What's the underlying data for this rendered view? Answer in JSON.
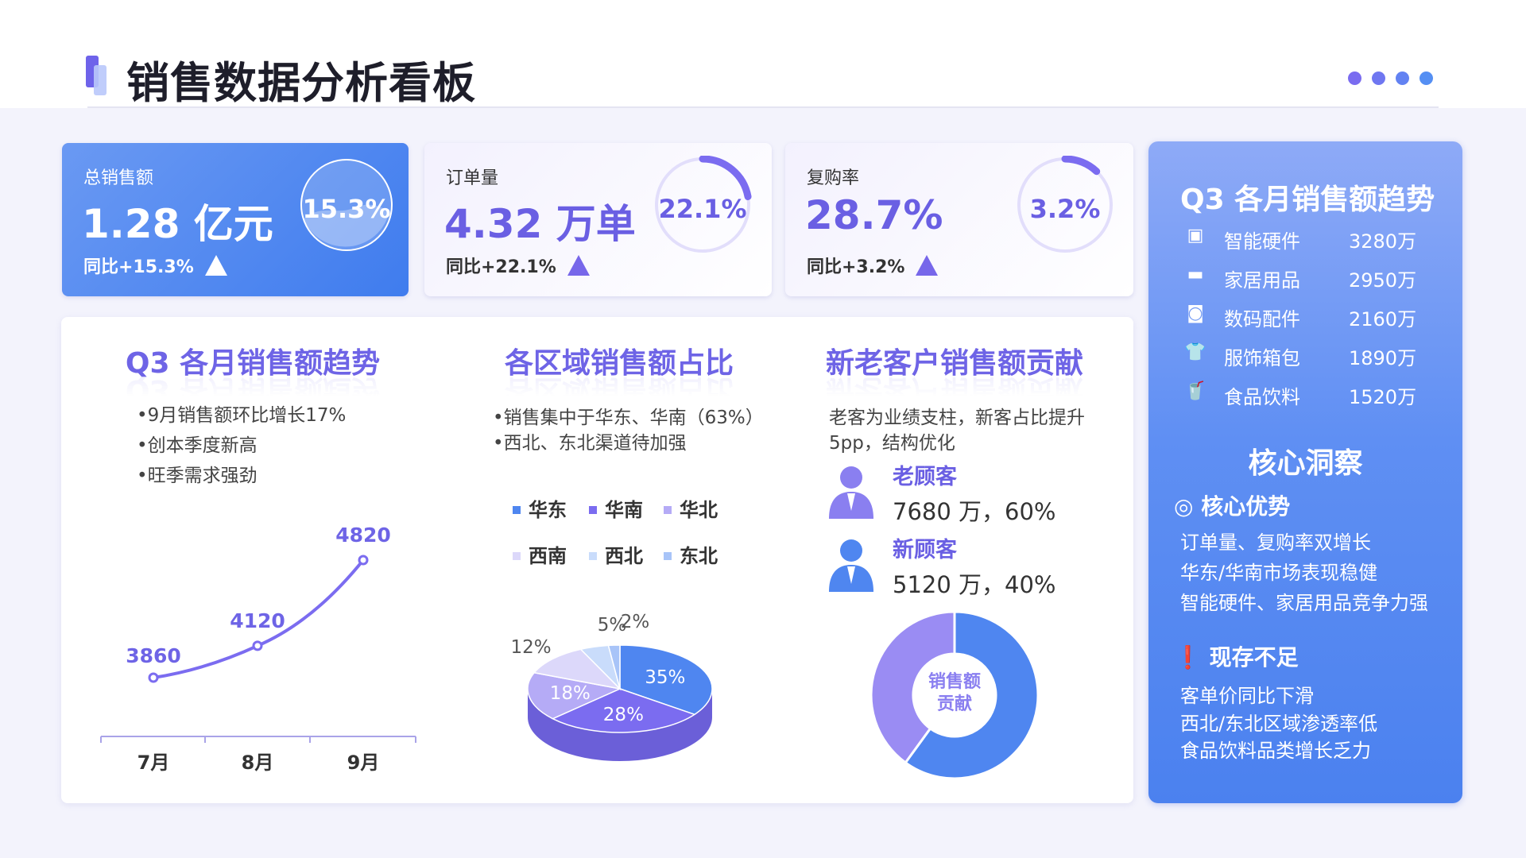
{
  "header": {
    "title": "销售数据分析看板",
    "dots": [
      "#7a6cf0",
      "#6f77f1",
      "#6282f2",
      "#558ff3"
    ]
  },
  "kpis": [
    {
      "label": "总销售额",
      "value": "1.28 亿元",
      "yoy": "同比+15.3%",
      "ring": "15.3%",
      "ring_fraction": 0.153
    },
    {
      "label": "订单量",
      "value": "4.32 万单",
      "yoy": "同比+22.1%",
      "ring": "22.1%",
      "ring_fraction": 0.221
    },
    {
      "label": "复购率",
      "value": "28.7%",
      "yoy": "同比+3.2%",
      "ring": "3.2%",
      "ring_fraction": 0.032
    }
  ],
  "trend": {
    "title": "Q3 各月销售额趋势",
    "bullets": [
      "•9月销售额环比增长17%",
      "•创本季度新高",
      "•旺季需求强劲"
    ]
  },
  "region": {
    "title": "各区域销售额占比",
    "bullets": [
      "•销售集中于华东、华南（63%）",
      "•西北、东北渠道待加强"
    ]
  },
  "customer": {
    "title": "新老客户销售额贡献",
    "desc": [
      "老客为业绩支柱，新客占比提升",
      "5pp，结构优化"
    ],
    "items": [
      {
        "name": "老顾客",
        "value": "7680 万，60%"
      },
      {
        "name": "新顾客",
        "value": "5120 万，40%"
      }
    ],
    "donut_label": [
      "销售额",
      "贡献"
    ]
  },
  "chart_data": [
    {
      "type": "line",
      "categories": [
        "7月",
        "8月",
        "9月"
      ],
      "values": [
        3860,
        4120,
        4820
      ],
      "data_labels": [
        "3860",
        "4120",
        "4820"
      ],
      "color": "#7b6cf0"
    },
    {
      "type": "pie",
      "style": "3d",
      "categories": [
        "华东",
        "华南",
        "华北",
        "西南",
        "西北",
        "东北"
      ],
      "values": [
        35,
        28,
        18,
        12,
        5,
        2
      ],
      "labels": [
        "35%",
        "28%",
        "18%",
        "12%",
        "5%",
        "2%"
      ],
      "colors": [
        "#4f86f0",
        "#7b6cf0",
        "#b5abf6",
        "#dcd8fa",
        "#c9dcfb",
        "#a8c4f8"
      ],
      "legend": "top"
    },
    {
      "type": "pie",
      "style": "donut",
      "categories": [
        "老顾客",
        "新顾客"
      ],
      "values": [
        60,
        40
      ],
      "colors": [
        "#4f86f0",
        "#9a8cf3"
      ]
    }
  ],
  "panel": {
    "title": "Q3 各月销售额趋势",
    "rows": [
      {
        "icon": "chip-icon",
        "glyph": "▣",
        "label": "智能硬件",
        "value": "3280万"
      },
      {
        "icon": "bed-icon",
        "glyph": "▬",
        "label": "家居用品",
        "value": "2950万"
      },
      {
        "icon": "camera-icon",
        "glyph": "◙",
        "label": "数码配件",
        "value": "2160万"
      },
      {
        "icon": "shirt-icon",
        "glyph": "👕",
        "label": "服饰箱包",
        "value": "1890万"
      },
      {
        "icon": "drink-icon",
        "glyph": "🥤",
        "label": "食品饮料",
        "value": "1520万"
      }
    ],
    "insight_title": "核心洞察",
    "adv_title": "核心优势",
    "adv": [
      "订单量、复购率双增长",
      "华东/华南市场表现稳健",
      "智能硬件、家居用品竞争力强"
    ],
    "weak_title": "现存不足",
    "weak": [
      "客单价同比下滑",
      "西北/东北区域渗透率低",
      "食品饮料品类增长乏力"
    ]
  }
}
